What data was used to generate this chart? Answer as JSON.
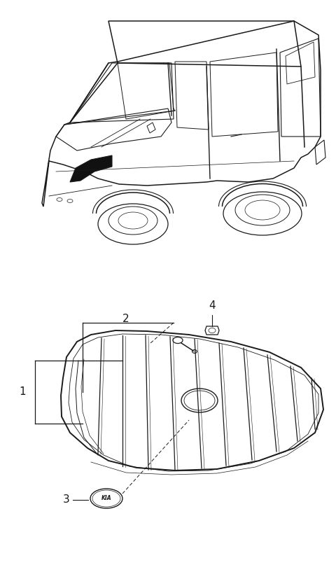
{
  "bg_color": "#ffffff",
  "line_color": "#1a1a1a",
  "lw": 1.0,
  "fig_width": 4.8,
  "fig_height": 8.07,
  "dpi": 100
}
